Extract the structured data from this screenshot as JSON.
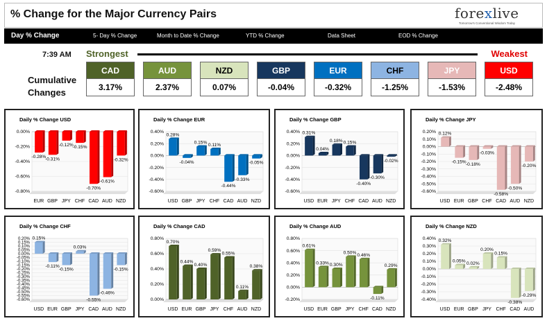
{
  "header": {
    "title": "% Change for the Major Currency Pairs",
    "logo_text_pre": "fore",
    "logo_text_x": "x",
    "logo_text_post": "live",
    "logo_tagline": "Tomorrow's Conventional Wisdom Today"
  },
  "tabs": [
    {
      "label": "Day % Change",
      "active": true
    },
    {
      "label": "5- Day % Change",
      "active": false
    },
    {
      "label": "Month to Date % Change",
      "active": false
    },
    {
      "label": "YTD % Change",
      "active": false
    },
    {
      "label": "Data Sheet",
      "active": false
    },
    {
      "label": "EOD % Change",
      "active": false
    }
  ],
  "summary": {
    "time": "7:39 AM",
    "strongest_label": "Strongest",
    "weakest_label": "Weakest",
    "cumulative_label_line1": "Cumulative",
    "cumulative_label_line2": "Changes",
    "currencies": [
      {
        "name": "CAD",
        "value": "3.17%",
        "color": "#4f6228",
        "text_color": "#ffffff"
      },
      {
        "name": "AUD",
        "value": "2.37%",
        "color": "#76933c",
        "text_color": "#ffffff"
      },
      {
        "name": "NZD",
        "value": "0.07%",
        "color": "#d8e4bc",
        "text_color": "#000000"
      },
      {
        "name": "GBP",
        "value": "-0.04%",
        "color": "#17375e",
        "text_color": "#ffffff"
      },
      {
        "name": "EUR",
        "value": "-0.32%",
        "color": "#0070c0",
        "text_color": "#ffffff"
      },
      {
        "name": "CHF",
        "value": "-1.25%",
        "color": "#8db4e2",
        "text_color": "#000000"
      },
      {
        "name": "JPY",
        "value": "-1.53%",
        "color": "#e6b8b7",
        "text_color": "#ffffff"
      },
      {
        "name": "USD",
        "value": "-2.48%",
        "color": "#ff0000",
        "text_color": "#ffffff"
      }
    ]
  },
  "chart_data": [
    {
      "type": "bar",
      "title": "Daily % Change USD",
      "categories": [
        "EUR",
        "GBP",
        "JPY",
        "CHF",
        "CAD",
        "AUD",
        "NZD"
      ],
      "values": [
        -0.28,
        -0.31,
        -0.12,
        -0.15,
        -0.7,
        -0.61,
        -0.32
      ],
      "labels": [
        "-0.28%",
        "-0.31%",
        "-0.12%",
        "-0.15%",
        "-0.70%",
        "-0.61%",
        "-0.32%"
      ],
      "ylim": [
        -0.8,
        0.0
      ],
      "ticks": [
        0.0,
        -0.2,
        -0.4,
        -0.6,
        -0.8
      ],
      "tick_labels": [
        "0.00%",
        "-0.20%",
        "-0.40%",
        "-0.60%",
        "-0.80%"
      ],
      "color": "#ff0000"
    },
    {
      "type": "bar",
      "title": "Daily % Change EUR",
      "categories": [
        "USD",
        "GBP",
        "JPY",
        "CHF",
        "CAD",
        "AUD",
        "NZD"
      ],
      "values": [
        0.28,
        -0.04,
        0.15,
        0.11,
        -0.44,
        -0.33,
        -0.05
      ],
      "labels": [
        "0.28%",
        "-0.04%",
        "0.15%",
        "0.11%",
        "-0.44%",
        "-0.33%",
        "-0.05%"
      ],
      "ylim": [
        -0.6,
        0.4
      ],
      "ticks": [
        0.4,
        0.2,
        0.0,
        -0.2,
        -0.4,
        -0.6
      ],
      "tick_labels": [
        "0.40%",
        "0.20%",
        "0.00%",
        "-0.20%",
        "-0.40%",
        "-0.60%"
      ],
      "color": "#0070c0"
    },
    {
      "type": "bar",
      "title": "Daily % Change GBP",
      "categories": [
        "USD",
        "EUR",
        "JPY",
        "CHF",
        "CAD",
        "AUD",
        "NZD"
      ],
      "values": [
        0.31,
        0.04,
        0.18,
        0.15,
        -0.4,
        -0.3,
        -0.02
      ],
      "labels": [
        "0.31%",
        "0.04%",
        "0.18%",
        "0.15%",
        "-0.40%",
        "-0.30%",
        "-0.02%"
      ],
      "ylim": [
        -0.6,
        0.4
      ],
      "ticks": [
        0.4,
        0.2,
        0.0,
        -0.2,
        -0.4,
        -0.6
      ],
      "tick_labels": [
        "0.40%",
        "0.20%",
        "0.00%",
        "-0.20%",
        "-0.40%",
        "-0.60%"
      ],
      "color": "#17375e"
    },
    {
      "type": "bar",
      "title": "Daily % Change JPY",
      "categories": [
        "USD",
        "EUR",
        "GBP",
        "CHF",
        "CAD",
        "AUD",
        "NZD"
      ],
      "values": [
        0.12,
        -0.15,
        -0.18,
        -0.03,
        -0.58,
        -0.5,
        -0.2
      ],
      "labels": [
        "0.12%",
        "-0.15%",
        "-0.18%",
        "-0.03%",
        "-0.58%",
        "-0.50%",
        "-0.20%"
      ],
      "ylim": [
        -0.6,
        0.2
      ],
      "ticks": [
        0.2,
        0.1,
        0.0,
        -0.1,
        -0.2,
        -0.3,
        -0.4,
        -0.5,
        -0.6
      ],
      "tick_labels": [
        "0.20%",
        "0.10%",
        "0.00%",
        "-0.10%",
        "-0.20%",
        "-0.30%",
        "-0.40%",
        "-0.50%",
        "-0.60%"
      ],
      "color": "#e6b8b7"
    },
    {
      "type": "bar",
      "title": "Daily % Change CHF",
      "categories": [
        "USD",
        "EUR",
        "GBP",
        "JPY",
        "CAD",
        "AUD",
        "NZD"
      ],
      "values": [
        0.15,
        -0.11,
        -0.15,
        0.03,
        -0.55,
        -0.46,
        -0.15
      ],
      "labels": [
        "0.15%",
        "-0.11%",
        "-0.15%",
        "0.03%",
        "-0.55%",
        "-0.46%",
        "-0.15%"
      ],
      "ylim": [
        -0.6,
        0.2
      ],
      "ticks": [
        0.2,
        0.15,
        0.1,
        0.05,
        0.0,
        -0.05,
        -0.1,
        -0.15,
        -0.2,
        -0.25,
        -0.3,
        -0.35,
        -0.4,
        -0.45,
        -0.5,
        -0.55,
        -0.6
      ],
      "tick_labels": [
        "0.20%",
        "0.15%",
        "0.10%",
        "0.05%",
        "0.00%",
        "-0.05%",
        "-0.10%",
        "-0.15%",
        "-0.20%",
        "-0.25%",
        "-0.30%",
        "-0.35%",
        "-0.40%",
        "-0.45%",
        "-0.50%",
        "-0.55%",
        "-0.60%"
      ],
      "color": "#8db4e2"
    },
    {
      "type": "bar",
      "title": "Daily % Change CAD",
      "categories": [
        "USD",
        "EUR",
        "GBP",
        "JPY",
        "CHF",
        "AUD",
        "NZD"
      ],
      "values": [
        0.7,
        0.44,
        0.4,
        0.59,
        0.55,
        0.11,
        0.38
      ],
      "labels": [
        "0.70%",
        "0.44%",
        "0.40%",
        "0.59%",
        "0.55%",
        "0.11%",
        "0.38%"
      ],
      "ylim": [
        0.0,
        0.8
      ],
      "ticks": [
        0.8,
        0.6,
        0.4,
        0.2,
        0.0
      ],
      "tick_labels": [
        "0.80%",
        "0.60%",
        "0.40%",
        "0.20%",
        "0.00%"
      ],
      "color": "#4f6228"
    },
    {
      "type": "bar",
      "title": "Daily % Change AUD",
      "categories": [
        "USD",
        "EUR",
        "GBP",
        "JPY",
        "CHF",
        "CAD",
        "NZD"
      ],
      "values": [
        0.61,
        0.33,
        0.3,
        0.5,
        0.46,
        -0.11,
        0.29
      ],
      "labels": [
        "0.61%",
        "0.33%",
        "0.30%",
        "0.50%",
        "0.46%",
        "-0.11%",
        "0.29%"
      ],
      "ylim": [
        -0.2,
        0.8
      ],
      "ticks": [
        0.8,
        0.6,
        0.4,
        0.2,
        0.0,
        -0.2
      ],
      "tick_labels": [
        "0.80%",
        "0.60%",
        "0.40%",
        "0.20%",
        "0.00%",
        "-0.20%"
      ],
      "color": "#76933c"
    },
    {
      "type": "bar",
      "title": "Daily % Change NZD",
      "categories": [
        "USD",
        "EUR",
        "GBP",
        "JPY",
        "CHF",
        "CAD",
        "AUD"
      ],
      "values": [
        0.32,
        0.05,
        0.02,
        0.2,
        0.15,
        -0.38,
        -0.29
      ],
      "labels": [
        "0.32%",
        "0.05%",
        "0.02%",
        "0.20%",
        "0.15%",
        "-0.38%",
        "-0.29%"
      ],
      "ylim": [
        -0.4,
        0.4
      ],
      "ticks": [
        0.4,
        0.3,
        0.2,
        0.1,
        0.0,
        -0.1,
        -0.2,
        -0.3,
        -0.4
      ],
      "tick_labels": [
        "0.40%",
        "0.30%",
        "0.20%",
        "0.10%",
        "0.00%",
        "-0.10%",
        "-0.20%",
        "-0.30%",
        "-0.40%"
      ],
      "color": "#d8e4bc"
    }
  ]
}
